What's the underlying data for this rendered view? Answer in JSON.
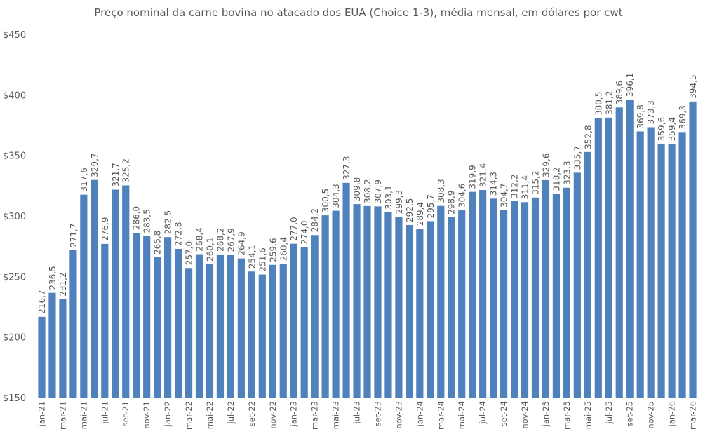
{
  "chart_data": {
    "type": "bar",
    "title": "Preço nominal da carne bovina no atacado dos EUA (Choice 1-3), média mensal, em dólares por cwt",
    "xlabel": "",
    "ylabel": "",
    "ylim": [
      150,
      450
    ],
    "yticks": [
      "$150",
      "$200",
      "$250",
      "$300",
      "$350",
      "$400",
      "$450"
    ],
    "grid": false,
    "bar_color": "#4f81bd",
    "categories": [
      "jan-21",
      "fev-21",
      "mar-21",
      "abr-21",
      "mai-21",
      "jun-21",
      "jul-21",
      "ago-21",
      "set-21",
      "out-21",
      "nov-21",
      "dez-21",
      "jan-22",
      "fev-22",
      "mar-22",
      "abr-22",
      "mai-22",
      "jun-22",
      "jul-22",
      "ago-22",
      "set-22",
      "out-22",
      "nov-22",
      "dez-22",
      "jan-23",
      "fev-23",
      "mar-23",
      "abr-23",
      "mai-23",
      "jun-23",
      "jul-23",
      "ago-23",
      "set-23",
      "out-23",
      "nov-23",
      "dez-23",
      "jan-24",
      "fev-24",
      "mar-24",
      "abr-24",
      "mai-24",
      "jun-24",
      "jul-24",
      "ago-24",
      "set-24",
      "out-24",
      "nov-24",
      "dez-24",
      "jan-25",
      "fev-25",
      "mar-25",
      "abr-25",
      "mai-25",
      "jun-25",
      "jul-25",
      "ago-25",
      "set-25",
      "out-25",
      "nov-25",
      "dez-25",
      "jan-26",
      "fev-26",
      "mar-26"
    ],
    "values": [
      216.7,
      236.5,
      231.2,
      271.7,
      317.6,
      329.7,
      276.9,
      321.7,
      325.2,
      286.0,
      283.5,
      265.8,
      282.5,
      272.8,
      257.0,
      268.4,
      260.1,
      268.2,
      267.9,
      264.9,
      254.1,
      251.6,
      259.6,
      260.4,
      277.0,
      274.0,
      284.2,
      300.5,
      304.3,
      327.3,
      309.8,
      308.2,
      307.9,
      303.1,
      299.3,
      292.5,
      289.4,
      295.7,
      308.3,
      298.9,
      304.6,
      319.9,
      321.4,
      314.3,
      304.7,
      312.2,
      311.4,
      315.2,
      329.6,
      318.2,
      323.3,
      335.7,
      352.8,
      380.5,
      381.2,
      389.6,
      396.1,
      369.8,
      373.3,
      359.6,
      359.4,
      369.3,
      394.5
    ],
    "xtick_labels_shown": "every other month starting jan-21"
  }
}
